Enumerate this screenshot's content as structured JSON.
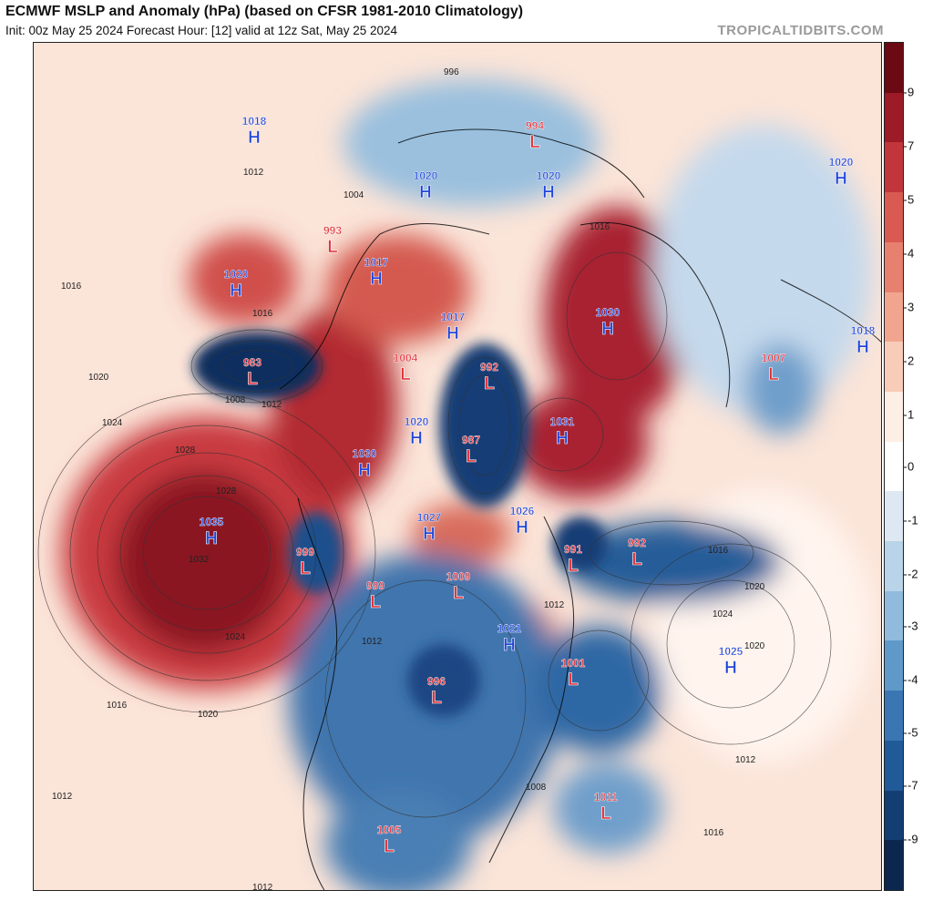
{
  "header": {
    "title": "ECMWF MSLP and Anomaly (hPa) (based on CFSR 1981-2010 Climatology)",
    "subtitle": "Init: 00z May 25 2024   Forecast Hour: [12]   valid at 12z Sat, May 25 2024",
    "brand": "TROPICALTIDBITS.COM"
  },
  "colorbar": {
    "ticks": [
      "9",
      "7",
      "5",
      "4",
      "3",
      "2",
      "1",
      "0",
      "-1",
      "-2",
      "-3",
      "-4",
      "-5",
      "-7",
      "-9"
    ],
    "colors": [
      "#6b0a13",
      "#9c1b27",
      "#c0363a",
      "#d85a50",
      "#e7806e",
      "#f1a58f",
      "#f8ccb8",
      "#fdeee6",
      "#ffffff",
      "#dde8f2",
      "#b9d3e8",
      "#91bbdc",
      "#5f99c9",
      "#3a76b3",
      "#215a98",
      "#133e74",
      "#0b274f"
    ]
  },
  "map": {
    "colors": {
      "high": "#1f44d8",
      "low": "#e0303a",
      "contour": "#333333"
    },
    "pressure_centers": [
      {
        "type": "H",
        "value": "1018"
      },
      {
        "type": "H",
        "value": "1020"
      },
      {
        "type": "L",
        "value": "994"
      },
      {
        "type": "H",
        "value": "1020"
      },
      {
        "type": "L",
        "value": "993"
      },
      {
        "type": "H",
        "value": "1017"
      },
      {
        "type": "H",
        "value": "1020"
      },
      {
        "type": "L",
        "value": "983"
      },
      {
        "type": "H",
        "value": "1030"
      },
      {
        "type": "H",
        "value": "1017"
      },
      {
        "type": "L",
        "value": "1004"
      },
      {
        "type": "L",
        "value": "992"
      },
      {
        "type": "H",
        "value": "1020"
      },
      {
        "type": "L",
        "value": "987"
      },
      {
        "type": "H",
        "value": "1031"
      },
      {
        "type": "H",
        "value": "1030"
      },
      {
        "type": "L",
        "value": "1007"
      },
      {
        "type": "H",
        "value": "1018"
      },
      {
        "type": "H",
        "value": "1035"
      },
      {
        "type": "L",
        "value": "999"
      },
      {
        "type": "L",
        "value": "999"
      },
      {
        "type": "H",
        "value": "1027"
      },
      {
        "type": "L",
        "value": "1009"
      },
      {
        "type": "H",
        "value": "1026"
      },
      {
        "type": "L",
        "value": "991"
      },
      {
        "type": "L",
        "value": "992"
      },
      {
        "type": "H",
        "value": "1021"
      },
      {
        "type": "L",
        "value": "1001"
      },
      {
        "type": "H",
        "value": "1025"
      },
      {
        "type": "L",
        "value": "996"
      },
      {
        "type": "L",
        "value": "1011"
      },
      {
        "type": "L",
        "value": "1005"
      },
      {
        "type": "H",
        "value": "1020"
      }
    ],
    "isobar_labels": [
      "1012",
      "1016",
      "1020",
      "1024",
      "1028",
      "1032",
      "1008",
      "1004",
      "996",
      "1012",
      "1016",
      "1020",
      "1024",
      "1012",
      "1016",
      "1020",
      "1012",
      "1008",
      "1016",
      "1012",
      "1020",
      "1024",
      "1028",
      "1016",
      "1012",
      "1012",
      "1016"
    ]
  }
}
